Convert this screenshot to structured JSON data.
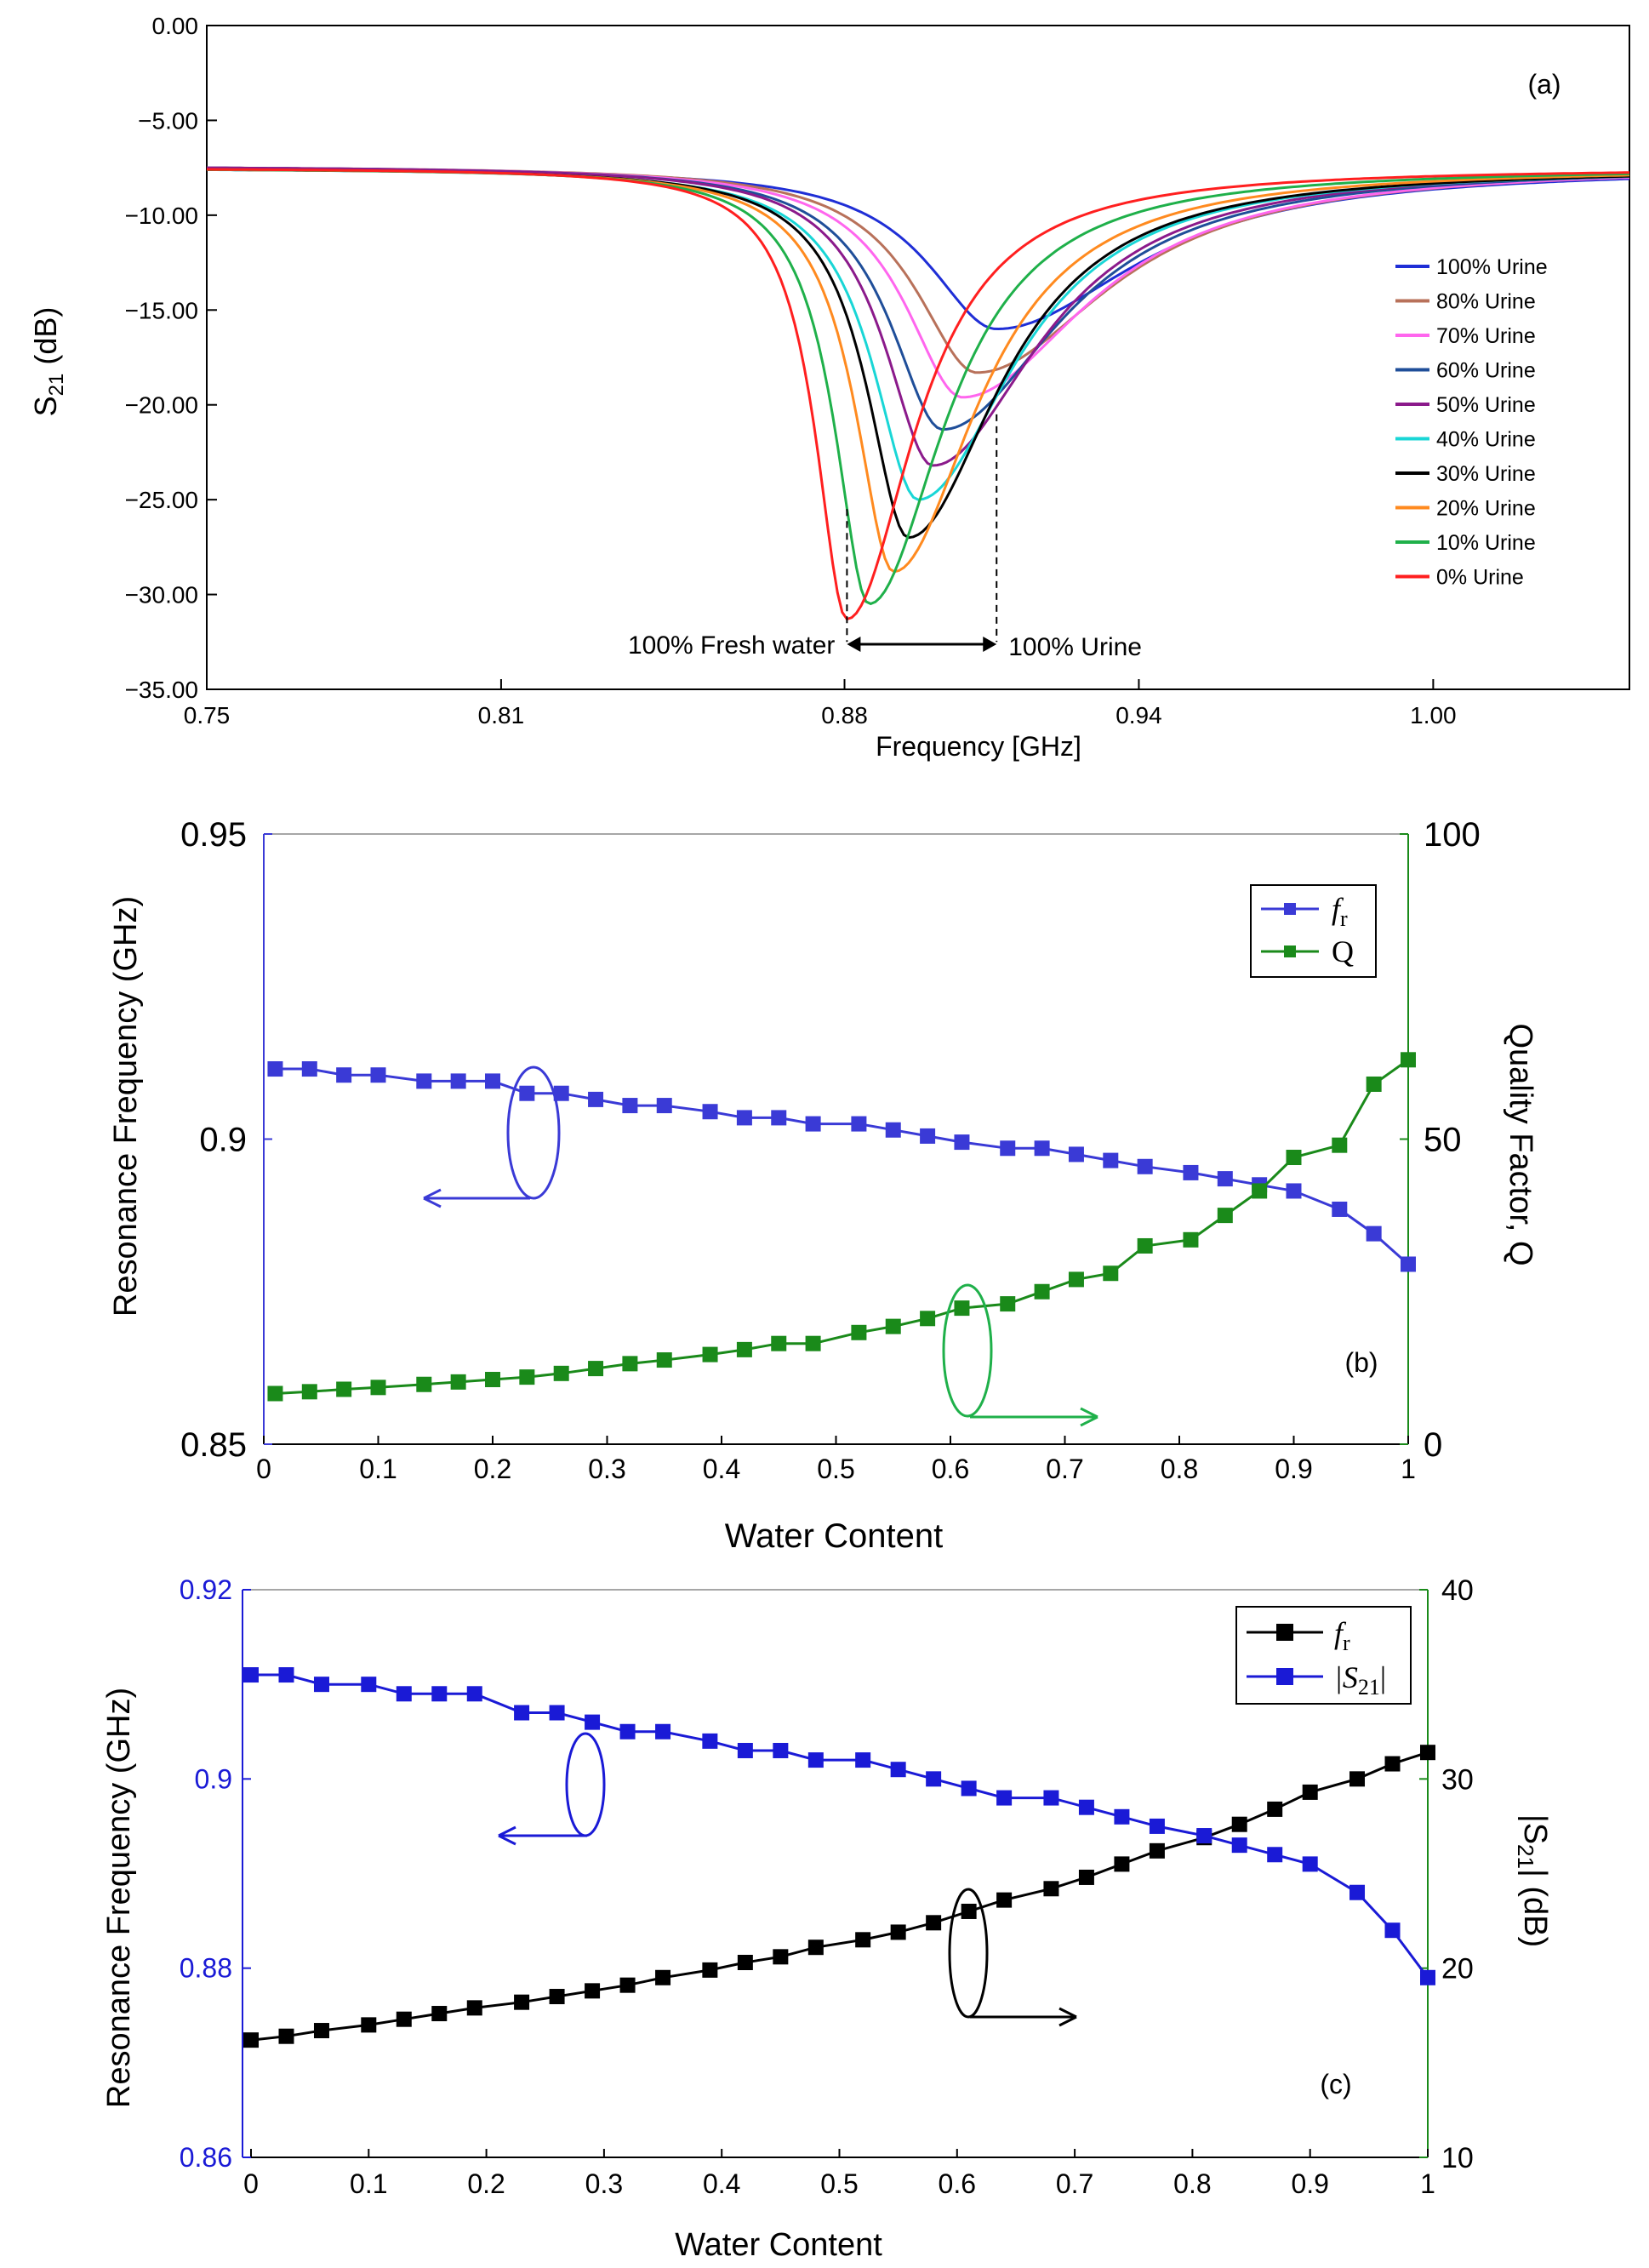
{
  "chart_data": [
    {
      "type": "line",
      "panel_label": "(a)",
      "xlabel": "Frequency [GHz]",
      "ylabel_main": "S",
      "ylabel_sub": "21",
      "ylabel_unit": " (dB)",
      "xlim": [
        0.75,
        1.04
      ],
      "ylim": [
        -35,
        0
      ],
      "xticks": [
        0.75,
        0.81,
        0.88,
        0.94,
        1.0
      ],
      "xtick_labels": [
        "0.75",
        "0.81",
        "0.88",
        "0.94",
        "1.00"
      ],
      "yticks": [
        0,
        -5,
        -10,
        -15,
        -20,
        -25,
        -30,
        -35
      ],
      "ytick_labels": [
        "0.00",
        "−5.00",
        "−10.00",
        "−15.00",
        "−20.00",
        "−25.00",
        "−30.00",
        "−35.00"
      ],
      "legend_position": "right",
      "annotations": {
        "left_text": "100% Fresh water",
        "right_text": "100% Urine",
        "left_marker_x": 0.8805,
        "right_marker_x": 0.911,
        "marker_bottom_y": -32.5
      },
      "series": [
        {
          "name": "100% Urine",
          "color": "#1f2ed6",
          "f0": 0.911,
          "depth": -16.0,
          "baseline": -7.5,
          "wl": 0.068,
          "wr": 0.14
        },
        {
          "name": "80% Urine",
          "color": "#b8715a",
          "f0": 0.907,
          "depth": -18.3,
          "baseline": -7.4,
          "wl": 0.061,
          "wr": 0.13
        },
        {
          "name": "70% Urine",
          "color": "#ff66ee",
          "f0": 0.904,
          "depth": -19.6,
          "baseline": -7.4,
          "wl": 0.057,
          "wr": 0.125
        },
        {
          "name": "60% Urine",
          "color": "#1f4e99",
          "f0": 0.9,
          "depth": -21.3,
          "baseline": -7.4,
          "wl": 0.052,
          "wr": 0.115
        },
        {
          "name": "50% Urine",
          "color": "#8b1a8b",
          "f0": 0.898,
          "depth": -23.2,
          "baseline": -7.4,
          "wl": 0.048,
          "wr": 0.105
        },
        {
          "name": "40% Urine",
          "color": "#19d6d6",
          "f0": 0.895,
          "depth": -25.0,
          "baseline": -7.5,
          "wl": 0.045,
          "wr": 0.095
        },
        {
          "name": "30% Urine",
          "color": "#000000",
          "f0": 0.893,
          "depth": -27.0,
          "baseline": -7.5,
          "wl": 0.041,
          "wr": 0.09
        },
        {
          "name": "20% Urine",
          "color": "#ff8a1f",
          "f0": 0.89,
          "depth": -28.8,
          "baseline": -7.5,
          "wl": 0.038,
          "wr": 0.082
        },
        {
          "name": "10% Urine",
          "color": "#1fb04a",
          "f0": 0.885,
          "depth": -30.5,
          "baseline": -7.5,
          "wl": 0.034,
          "wr": 0.074
        },
        {
          "name": "0% Urine",
          "color": "#ff1f1f",
          "f0": 0.8805,
          "depth": -31.3,
          "baseline": -7.5,
          "wl": 0.031,
          "wr": 0.066
        }
      ]
    },
    {
      "type": "line",
      "panel_label": "(b)",
      "xlabel": "Water Content",
      "ylabel_left": "Resonance Frequency (GHz)",
      "ylabel_right": "Quality Factor, Q",
      "xlim": [
        0,
        1
      ],
      "ylim_left": [
        0.85,
        0.95
      ],
      "ylim_right": [
        0,
        100
      ],
      "xticks": [
        0,
        0.1,
        0.2,
        0.3,
        0.4,
        0.5,
        0.6,
        0.7,
        0.8,
        0.9,
        1
      ],
      "xtick_labels": [
        "0",
        "0.1",
        "0.2",
        "0.3",
        "0.4",
        "0.5",
        "0.6",
        "0.7",
        "0.8",
        "0.9",
        "1"
      ],
      "yticks_left": [
        0.85,
        0.9,
        0.95
      ],
      "ytick_labels_left": [
        "0.85",
        "0.9",
        "0.95"
      ],
      "yticks_right": [
        0,
        50,
        100
      ],
      "ytick_labels_right": [
        "0",
        "50",
        "100"
      ],
      "legend_position": "top-right",
      "x": [
        0.01,
        0.04,
        0.07,
        0.1,
        0.14,
        0.17,
        0.2,
        0.23,
        0.26,
        0.29,
        0.32,
        0.35,
        0.39,
        0.42,
        0.45,
        0.48,
        0.52,
        0.55,
        0.58,
        0.61,
        0.65,
        0.68,
        0.71,
        0.74,
        0.77,
        0.81,
        0.84,
        0.87,
        0.9,
        0.94,
        0.97,
        1.0
      ],
      "series": [
        {
          "name": "f",
          "name_sub": "r",
          "axis": "left",
          "color": "#3a3ad6",
          "values": [
            0.9115,
            0.9115,
            0.9105,
            0.9105,
            0.9095,
            0.9095,
            0.9095,
            0.9075,
            0.9075,
            0.9065,
            0.9055,
            0.9055,
            0.9045,
            0.9035,
            0.9035,
            0.9025,
            0.9025,
            0.9015,
            0.9005,
            0.8995,
            0.8985,
            0.8985,
            0.8975,
            0.8965,
            0.8955,
            0.8945,
            0.8935,
            0.8925,
            0.8915,
            0.8885,
            0.8845,
            0.8795
          ]
        },
        {
          "name": "Q",
          "axis": "right",
          "color": "#1a8a1a",
          "values": [
            8.3,
            8.6,
            9.0,
            9.3,
            9.8,
            10.2,
            10.6,
            11.0,
            11.6,
            12.4,
            13.2,
            13.8,
            14.7,
            15.5,
            16.5,
            16.5,
            18.3,
            19.3,
            20.6,
            22.3,
            23.0,
            25.0,
            27.0,
            28.0,
            32.5,
            33.5,
            37.5,
            41.5,
            47.0,
            49.0,
            59.0,
            63.0
          ]
        }
      ]
    },
    {
      "type": "line",
      "panel_label": "(c)",
      "xlabel": "Water Content",
      "ylabel_left": "Resonance Frequency  (GHz)",
      "ylabel_right_pre": "|S",
      "ylabel_right_sub": "21",
      "ylabel_right_post": "| (dB)",
      "xlim": [
        0,
        1
      ],
      "ylim_left": [
        0.86,
        0.92
      ],
      "ylim_right": [
        10,
        40
      ],
      "xticks": [
        0,
        0.1,
        0.2,
        0.3,
        0.4,
        0.5,
        0.6,
        0.7,
        0.8,
        0.9,
        1
      ],
      "xtick_labels": [
        "0",
        "0.1",
        "0.2",
        "0.3",
        "0.4",
        "0.5",
        "0.6",
        "0.7",
        "0.8",
        "0.9",
        "1"
      ],
      "yticks_left": [
        0.86,
        0.88,
        0.9,
        0.92
      ],
      "ytick_labels_left": [
        "0.86",
        "0.88",
        "0.9",
        "0.92"
      ],
      "yticks_right": [
        10,
        20,
        30,
        40
      ],
      "ytick_labels_right": [
        "10",
        "20",
        "30",
        "40"
      ],
      "legend_position": "top-right",
      "x": [
        0.0,
        0.03,
        0.06,
        0.1,
        0.13,
        0.16,
        0.19,
        0.23,
        0.26,
        0.29,
        0.32,
        0.35,
        0.39,
        0.42,
        0.45,
        0.48,
        0.52,
        0.55,
        0.58,
        0.61,
        0.64,
        0.68,
        0.71,
        0.74,
        0.77,
        0.81,
        0.84,
        0.87,
        0.9,
        0.94,
        0.97,
        1.0
      ],
      "series": [
        {
          "name": "f",
          "name_sub": "r",
          "axis": "right",
          "color": "#000000",
          "values": [
            16.2,
            16.4,
            16.7,
            17.0,
            17.3,
            17.6,
            17.9,
            18.2,
            18.5,
            18.8,
            19.1,
            19.5,
            19.9,
            20.3,
            20.6,
            21.1,
            21.5,
            21.9,
            22.4,
            23.0,
            23.6,
            24.2,
            24.8,
            25.5,
            26.2,
            26.9,
            27.6,
            28.4,
            29.3,
            30.0,
            30.8,
            31.4
          ]
        },
        {
          "name": "|S",
          "name_sub": "21",
          "name_post": "|",
          "axis": "left",
          "color": "#1a1ad6",
          "values": [
            0.911,
            0.911,
            0.91,
            0.91,
            0.909,
            0.909,
            0.909,
            0.907,
            0.907,
            0.906,
            0.905,
            0.905,
            0.904,
            0.903,
            0.903,
            0.902,
            0.902,
            0.901,
            0.9,
            0.899,
            0.898,
            0.898,
            0.897,
            0.896,
            0.895,
            0.894,
            0.893,
            0.892,
            0.891,
            0.888,
            0.884,
            0.879
          ]
        }
      ]
    }
  ]
}
